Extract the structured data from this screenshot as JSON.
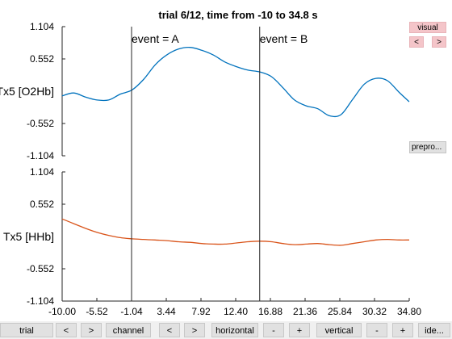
{
  "chart_data": {
    "type": "line",
    "title": "trial 6/12, time from -10 to 34.8 s",
    "xlim": [
      -10,
      34.8
    ],
    "x_ticks": [
      "-10.00",
      "-5.52",
      "-1.04",
      "3.44",
      "7.92",
      "12.40",
      "16.88",
      "21.36",
      "25.84",
      "30.32",
      "34.80"
    ],
    "panels": [
      {
        "ylabel": "Tx5 [O2Hb]",
        "ylim": [
          -1.104,
          1.104
        ],
        "y_ticks": [
          "1.104",
          "0.552",
          "-0.552",
          "-1.104"
        ],
        "color": "#0072bd",
        "x": [
          -10,
          -8.5,
          -7,
          -5.5,
          -4,
          -2.5,
          -1,
          0.5,
          2,
          3.5,
          5,
          6.5,
          8,
          9.5,
          11,
          12.5,
          14,
          15.5,
          17,
          18.5,
          20,
          21.5,
          23,
          24.5,
          26,
          27.5,
          29,
          30.5,
          32,
          33.5,
          34.8
        ],
        "values": [
          -0.08,
          -0.03,
          -0.1,
          -0.15,
          -0.15,
          -0.05,
          0.02,
          0.2,
          0.45,
          0.62,
          0.72,
          0.75,
          0.7,
          0.62,
          0.5,
          0.42,
          0.36,
          0.33,
          0.25,
          0.06,
          -0.15,
          -0.25,
          -0.3,
          -0.42,
          -0.4,
          -0.14,
          0.12,
          0.22,
          0.18,
          -0.02,
          -0.18
        ]
      },
      {
        "ylabel": "Tx5 [HHb]",
        "ylim": [
          -1.104,
          1.104
        ],
        "y_ticks": [
          "1.104",
          "0.552",
          "-0.552",
          "-1.104"
        ],
        "color": "#d95319",
        "x": [
          -10,
          -8.5,
          -7,
          -5.5,
          -4,
          -2.5,
          -1,
          0.5,
          2,
          3.5,
          5,
          6.5,
          8,
          9.5,
          11,
          12.5,
          14,
          15.5,
          17,
          18.5,
          20,
          21.5,
          23,
          24.5,
          26,
          27.5,
          29,
          30.5,
          32,
          33.5,
          34.8
        ],
        "values": [
          0.3,
          0.22,
          0.14,
          0.07,
          0.02,
          -0.02,
          -0.04,
          -0.05,
          -0.06,
          -0.07,
          -0.09,
          -0.1,
          -0.12,
          -0.13,
          -0.13,
          -0.11,
          -0.09,
          -0.08,
          -0.09,
          -0.12,
          -0.14,
          -0.13,
          -0.12,
          -0.14,
          -0.15,
          -0.12,
          -0.09,
          -0.06,
          -0.05,
          -0.06,
          -0.06
        ]
      }
    ],
    "events": [
      {
        "label": "event = A",
        "x": -1.04
      },
      {
        "label": "event = B",
        "x": 15.5
      }
    ]
  },
  "side_panel": {
    "visual_label": "visual",
    "prev_label": "<",
    "next_label": ">",
    "prepro_label": "prepro..."
  },
  "nav_bar": {
    "buttons": [
      "trial",
      "<",
      ">",
      "channel",
      "<",
      ">",
      "horizontal",
      "-",
      "+",
      "vertical",
      "-",
      "+",
      "ide..."
    ]
  },
  "colors": {
    "side_button_bg": "#f4c5c9",
    "button_bg": "#e1e1e1",
    "bar_bg": "#f0f0f0"
  }
}
